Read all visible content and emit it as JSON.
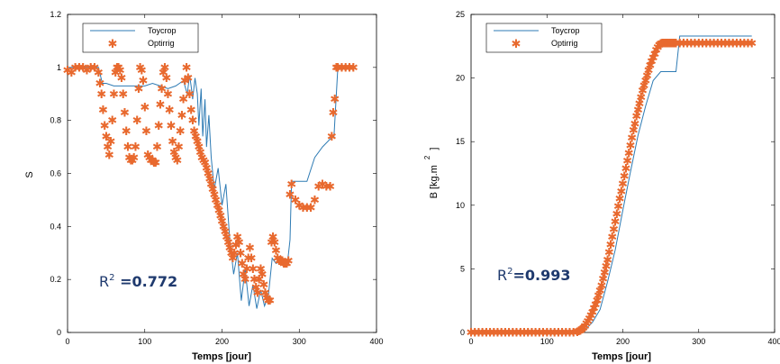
{
  "colors": {
    "toycrop": "#2e7bb4",
    "optirrig": "#e8692e",
    "r2": "#1f3a6e"
  },
  "chart_data": [
    {
      "type": "line",
      "xlabel": "Temps [jour]",
      "ylabel": "S",
      "xlim": [
        0,
        400
      ],
      "ylim": [
        0,
        1.2
      ],
      "xticks": [
        0,
        100,
        200,
        300,
        400
      ],
      "yticks": [
        0,
        0.2,
        0.4,
        0.6,
        0.8,
        1,
        1.2
      ],
      "ytick_labels": [
        "0",
        "0.2",
        "0.4",
        "0.6",
        "0.8",
        "1",
        "1.2"
      ],
      "legend": {
        "position": "top-left",
        "entries": [
          "Toycrop",
          "Optirrig"
        ]
      },
      "annotation": {
        "prefix": "R",
        "exp": "2",
        "value": " =0.772"
      },
      "series": [
        {
          "name": "Toycrop",
          "style": "line",
          "x": [
            0,
            40,
            45,
            50,
            60,
            70,
            80,
            90,
            100,
            110,
            120,
            130,
            140,
            150,
            155,
            158,
            160,
            162,
            165,
            168,
            170,
            173,
            175,
            178,
            180,
            183,
            186,
            190,
            195,
            200,
            205,
            210,
            215,
            220,
            225,
            230,
            235,
            240,
            245,
            250,
            255,
            260,
            265,
            270,
            275,
            280,
            285,
            288,
            290,
            300,
            310,
            320,
            330,
            340,
            345,
            350,
            370
          ],
          "y": [
            1,
            1,
            0.94,
            0.94,
            0.93,
            0.93,
            0.93,
            0.93,
            0.93,
            0.94,
            0.93,
            0.92,
            0.93,
            0.95,
            0.9,
            0.97,
            0.93,
            0.88,
            0.96,
            0.9,
            0.78,
            0.92,
            0.74,
            0.88,
            0.7,
            0.82,
            0.66,
            0.54,
            0.62,
            0.48,
            0.56,
            0.35,
            0.22,
            0.3,
            0.12,
            0.24,
            0.1,
            0.18,
            0.09,
            0.16,
            0.1,
            0.14,
            0.28,
            0.26,
            0.27,
            0.27,
            0.27,
            0.35,
            0.57,
            0.57,
            0.57,
            0.66,
            0.7,
            0.73,
            0.74,
            1,
            1
          ]
        },
        {
          "name": "Optirrig",
          "style": "marker",
          "x": [
            0,
            5,
            10,
            15,
            20,
            25,
            30,
            35,
            40,
            42,
            44,
            46,
            48,
            50,
            52,
            54,
            56,
            58,
            60,
            62,
            64,
            66,
            68,
            70,
            72,
            74,
            76,
            78,
            80,
            82,
            84,
            86,
            88,
            90,
            92,
            94,
            96,
            98,
            100,
            102,
            104,
            106,
            108,
            110,
            112,
            114,
            116,
            118,
            120,
            122,
            124,
            126,
            128,
            130,
            132,
            134,
            136,
            138,
            140,
            142,
            144,
            146,
            148,
            150,
            152,
            154,
            156,
            158,
            160,
            162,
            164,
            166,
            168,
            170,
            172,
            174,
            176,
            178,
            180,
            182,
            184,
            186,
            188,
            190,
            192,
            194,
            196,
            198,
            200,
            202,
            204,
            206,
            208,
            210,
            212,
            214,
            216,
            218,
            220,
            222,
            224,
            226,
            228,
            230,
            232,
            234,
            236,
            238,
            240,
            242,
            244,
            246,
            248,
            250,
            252,
            254,
            256,
            258,
            260,
            262,
            264,
            266,
            268,
            270,
            272,
            274,
            276,
            278,
            280,
            282,
            284,
            286,
            288,
            290,
            295,
            300,
            305,
            310,
            315,
            320,
            325,
            330,
            335,
            340,
            342,
            344,
            346,
            348,
            350,
            355,
            360,
            365,
            370
          ],
          "y": [
            0.99,
            0.98,
            1,
            1,
            1,
            0.99,
            1,
            1,
            0.98,
            0.94,
            0.9,
            0.84,
            0.78,
            0.74,
            0.7,
            0.67,
            0.72,
            0.8,
            0.9,
            0.98,
            1,
            1,
            0.99,
            0.96,
            0.9,
            0.83,
            0.76,
            0.7,
            0.66,
            0.65,
            0.65,
            0.66,
            0.7,
            0.8,
            0.92,
            1,
            0.99,
            0.95,
            0.85,
            0.76,
            0.67,
            0.66,
            0.65,
            0.65,
            0.64,
            0.64,
            0.7,
            0.78,
            0.86,
            0.92,
            0.98,
            1,
            0.96,
            0.9,
            0.84,
            0.78,
            0.72,
            0.68,
            0.66,
            0.65,
            0.7,
            0.76,
            0.82,
            0.88,
            0.95,
            1,
            0.96,
            0.9,
            0.84,
            0.8,
            0.76,
            0.74,
            0.72,
            0.7,
            0.68,
            0.66,
            0.65,
            0.64,
            0.62,
            0.6,
            0.58,
            0.56,
            0.54,
            0.52,
            0.5,
            0.48,
            0.46,
            0.44,
            0.42,
            0.4,
            0.38,
            0.36,
            0.34,
            0.32,
            0.3,
            0.28,
            0.3,
            0.33,
            0.36,
            0.34,
            0.3,
            0.26,
            0.22,
            0.2,
            0.24,
            0.28,
            0.32,
            0.28,
            0.24,
            0.2,
            0.17,
            0.15,
            0.2,
            0.24,
            0.22,
            0.18,
            0.15,
            0.13,
            0.12,
            0.12,
            0.34,
            0.36,
            0.34,
            0.31,
            0.28,
            0.27,
            0.27,
            0.27,
            0.26,
            0.26,
            0.26,
            0.27,
            0.52,
            0.56,
            0.5,
            0.48,
            0.47,
            0.47,
            0.47,
            0.5,
            0.55,
            0.56,
            0.55,
            0.55,
            0.74,
            0.83,
            0.88,
            1,
            1,
            1,
            1,
            1,
            1
          ]
        }
      ]
    },
    {
      "type": "line",
      "xlabel": "Temps [jour]",
      "ylabel": "B [kg.m",
      "ylabel_exp": "2",
      "ylabel_end": "]",
      "xlim": [
        0,
        400
      ],
      "ylim": [
        0,
        25
      ],
      "xticks": [
        0,
        100,
        200,
        300,
        400
      ],
      "yticks": [
        0,
        5,
        10,
        15,
        20,
        25
      ],
      "ytick_labels": [
        "0",
        "5",
        "10",
        "15",
        "20",
        "25"
      ],
      "legend": {
        "position": "top-left",
        "entries": [
          "Toycrop",
          "Optirrig"
        ]
      },
      "annotation": {
        "prefix": "R",
        "exp": "2",
        "value": "=0.993"
      },
      "series": [
        {
          "name": "Toycrop",
          "style": "line",
          "x": [
            0,
            140,
            150,
            160,
            170,
            180,
            190,
            200,
            210,
            220,
            230,
            240,
            250,
            260,
            270,
            275,
            280,
            300,
            370
          ],
          "y": [
            0,
            0,
            0.2,
            0.8,
            1.8,
            4.0,
            6.5,
            9.6,
            12.6,
            15.5,
            17.8,
            19.8,
            20.5,
            20.5,
            20.5,
            23.3,
            23.3,
            23.3,
            23.3
          ]
        },
        {
          "name": "Optirrig",
          "style": "marker",
          "x": [
            0,
            5,
            10,
            15,
            20,
            25,
            30,
            35,
            40,
            45,
            50,
            55,
            60,
            65,
            70,
            75,
            80,
            85,
            90,
            95,
            100,
            105,
            110,
            115,
            120,
            125,
            130,
            135,
            140,
            142,
            144,
            146,
            148,
            150,
            152,
            154,
            156,
            158,
            160,
            162,
            164,
            166,
            168,
            170,
            172,
            174,
            176,
            178,
            180,
            182,
            184,
            186,
            188,
            190,
            192,
            194,
            196,
            198,
            200,
            202,
            204,
            206,
            208,
            210,
            212,
            214,
            216,
            218,
            220,
            222,
            224,
            226,
            228,
            230,
            232,
            234,
            236,
            238,
            240,
            242,
            244,
            246,
            248,
            250,
            252,
            254,
            256,
            258,
            260,
            262,
            264,
            266,
            268,
            270,
            275,
            280,
            285,
            290,
            295,
            300,
            305,
            310,
            315,
            320,
            325,
            330,
            335,
            340,
            345,
            350,
            355,
            360,
            365,
            370
          ],
          "y": [
            0,
            0,
            0,
            0,
            0,
            0,
            0,
            0,
            0,
            0,
            0,
            0,
            0,
            0,
            0,
            0,
            0,
            0,
            0,
            0,
            0,
            0,
            0,
            0,
            0,
            0,
            0,
            0,
            0.05,
            0.1,
            0.15,
            0.25,
            0.35,
            0.5,
            0.7,
            0.9,
            1.1,
            1.35,
            1.6,
            1.9,
            2.2,
            2.5,
            2.9,
            3.3,
            3.7,
            4.2,
            4.7,
            5.2,
            5.7,
            6.3,
            6.9,
            7.5,
            8.1,
            8.7,
            9.3,
            9.9,
            10.5,
            11.1,
            11.7,
            12.3,
            12.9,
            13.5,
            14.1,
            14.7,
            15.3,
            15.9,
            16.4,
            17.0,
            17.5,
            18.0,
            18.5,
            19.0,
            19.4,
            19.8,
            20.2,
            20.6,
            21.0,
            21.3,
            21.6,
            21.9,
            22.2,
            22.4,
            22.6,
            22.7,
            22.75,
            22.75,
            22.75,
            22.75,
            22.75,
            22.75,
            22.75,
            22.75,
            22.75,
            22.75,
            22.75,
            22.75,
            22.75,
            22.75,
            22.75,
            22.75,
            22.75,
            22.75,
            22.75,
            22.75,
            22.75,
            22.75,
            22.75,
            22.75,
            22.75,
            22.75,
            22.75,
            22.75,
            22.75,
            22.75
          ]
        }
      ]
    }
  ]
}
